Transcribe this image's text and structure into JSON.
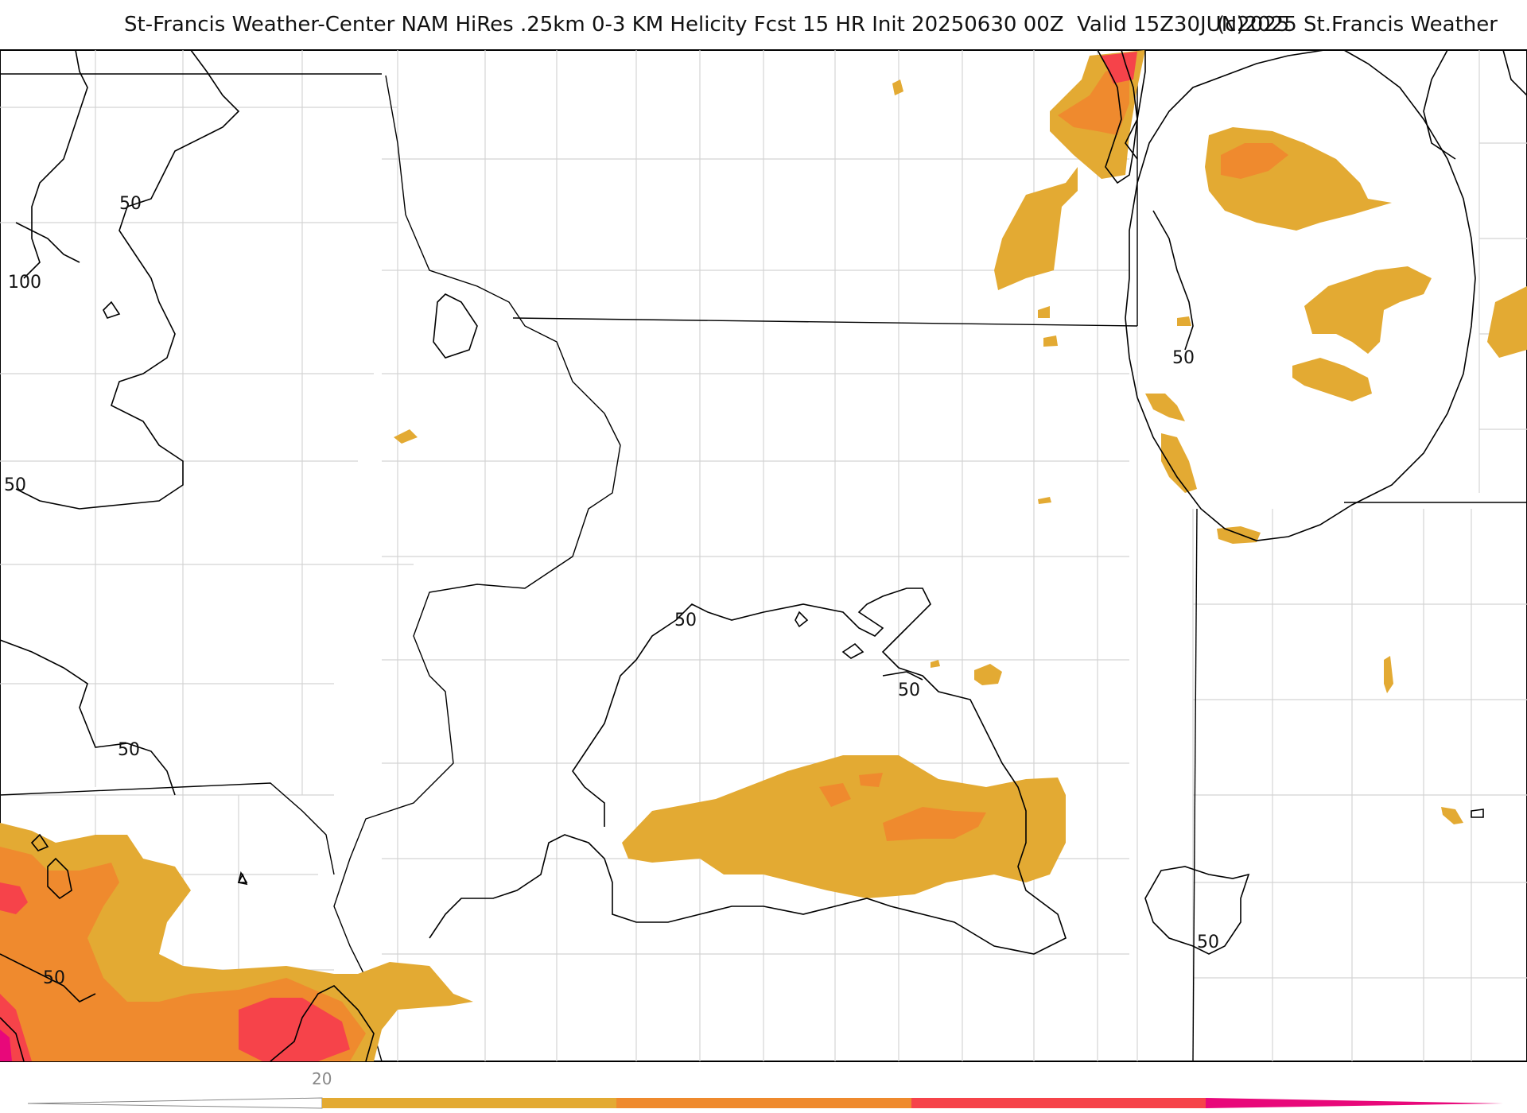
{
  "title": {
    "main": "St-Francis Weather-Center NAM HiRes .25km 0-3 KM Helicity Fcst 15 HR Init 20250630 00Z  Valid 15Z30JUN2025",
    "copyright": "(c)2025 St.Francis Weather"
  },
  "contour_labels": [
    "50",
    "100",
    "50",
    "50",
    "50",
    "50",
    "50",
    "50",
    "50"
  ],
  "colorbar": {
    "tick_label": "20",
    "colors": [
      "#e3aa33",
      "#ef8a2e",
      "#f6434a",
      "#e8087a"
    ]
  },
  "colors": {
    "fill_low": "#e3aa33",
    "fill_mid": "#ef8a2e",
    "fill_high": "#f6434a",
    "fill_extreme": "#e8087a"
  }
}
